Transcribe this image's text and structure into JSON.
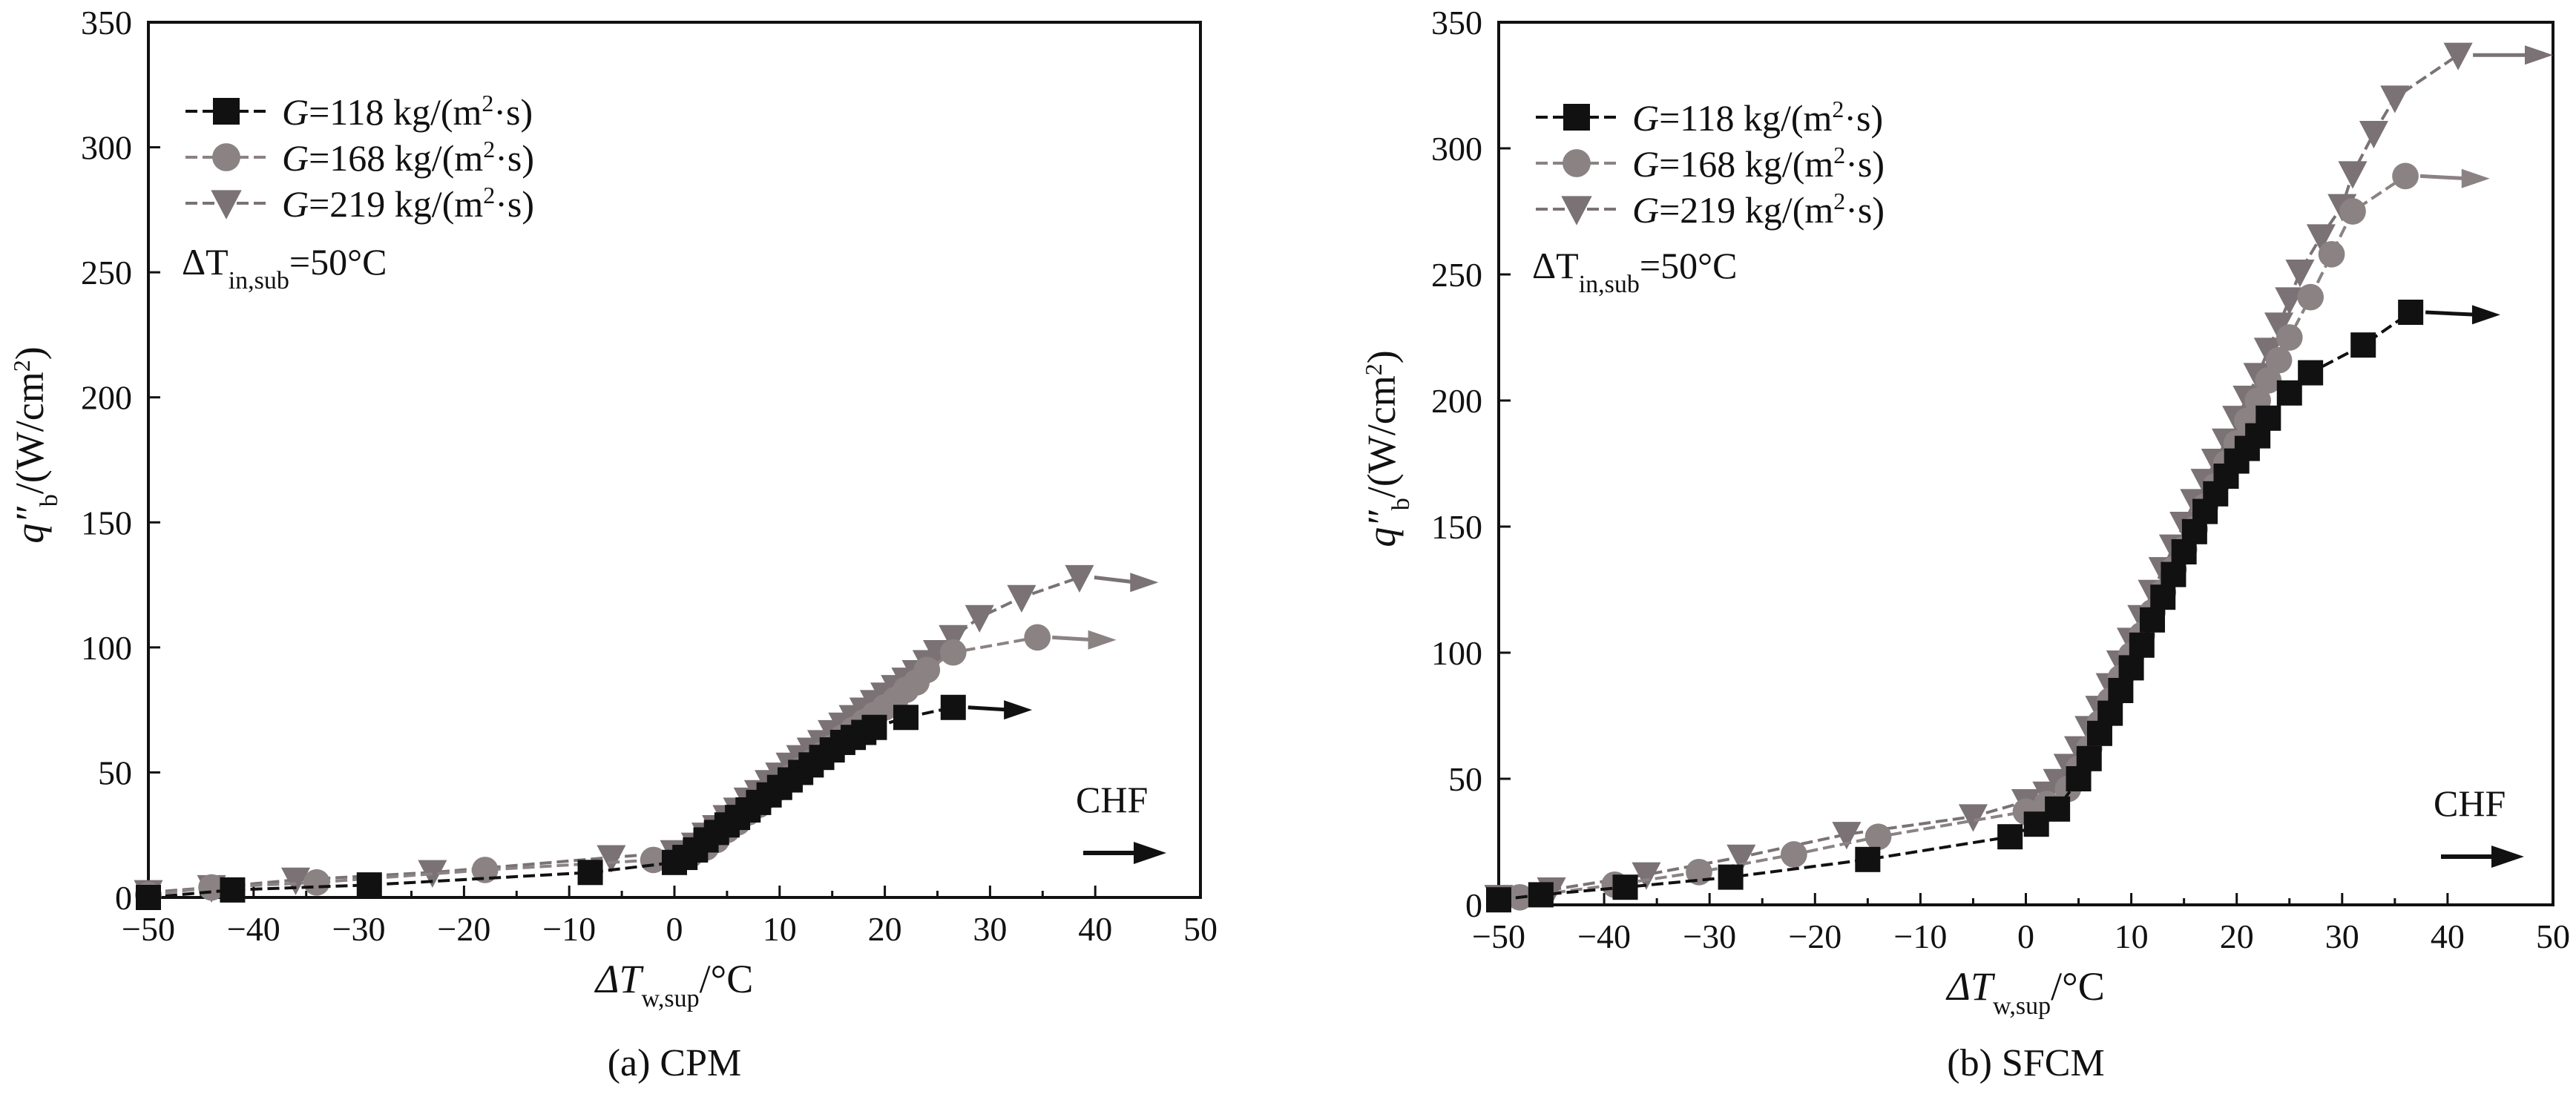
{
  "colors": {
    "black": "#111111",
    "gray": "#8a8283",
    "gray_dark": "#7a7274",
    "axis": "#111111"
  },
  "chart_data": [
    {
      "type": "line",
      "panel_caption": "(a) CPM",
      "xlabel": {
        "main": "ΔT",
        "sub": "w,sup",
        "unit": "/°C"
      },
      "ylabel": {
        "main": "q″",
        "sub": "b",
        "unit": "/(W/cm",
        "sup": "2",
        "close": ")"
      },
      "xlim": [
        -50,
        50
      ],
      "ylim": [
        0,
        350
      ],
      "xticks": [
        -50,
        -40,
        -30,
        -20,
        -10,
        0,
        10,
        20,
        30,
        40,
        50
      ],
      "yticks": [
        0,
        50,
        100,
        150,
        200,
        250,
        300,
        350
      ],
      "annotation": {
        "condition_main": "ΔT",
        "condition_sub": "in,sub",
        "condition_value": "=50°C",
        "chf_label": "CHF"
      },
      "series": [
        {
          "name_g": "G",
          "name_rest": "=118 kg/(m",
          "name_sup": "2",
          "name_end": "·s)",
          "marker": "square",
          "color": "black",
          "x": [
            -50,
            -42,
            -29,
            -8,
            0,
            1,
            2,
            3,
            4,
            5,
            6,
            7,
            8,
            9,
            10,
            11,
            12,
            13,
            14,
            15,
            16,
            17,
            18,
            19,
            22,
            26.5
          ],
          "y": [
            0,
            3,
            5,
            10,
            14,
            16,
            19,
            23,
            26,
            29,
            32,
            35,
            38,
            41,
            44,
            47,
            50,
            53,
            56,
            59,
            62,
            64,
            66,
            68,
            72,
            76
          ],
          "chf_arrow": [
            26.5,
            76,
            34,
            75
          ]
        },
        {
          "name_g": "G",
          "name_rest": "=168 kg/(m",
          "name_sup": "2",
          "name_end": "·s)",
          "marker": "circle",
          "color": "gray",
          "x": [
            -50,
            -44,
            -34,
            -18,
            -2,
            1.5,
            3,
            4,
            5,
            6,
            7,
            8,
            9,
            10,
            11,
            12,
            13,
            14,
            15,
            16,
            17,
            18,
            19,
            20,
            21,
            22,
            23,
            24,
            26.5,
            34.5
          ],
          "y": [
            1,
            4,
            6,
            11,
            15,
            17,
            20,
            23,
            27,
            30,
            34,
            37,
            41,
            44,
            48,
            51,
            54,
            57,
            60,
            64,
            67,
            70,
            73,
            76,
            79,
            83,
            86,
            91,
            98,
            104
          ],
          "chf_arrow": [
            34.5,
            104,
            42,
            103
          ]
        },
        {
          "name_g": "G",
          "name_rest": "=219 kg/(m",
          "name_sup": "2",
          "name_end": "·s)",
          "marker": "triangle",
          "color": "gray_dark",
          "x": [
            -50,
            -44,
            -36,
            -23,
            -6,
            0,
            2,
            3,
            4,
            5,
            6,
            7,
            8,
            9,
            10,
            11,
            12,
            13,
            14,
            15,
            16,
            17,
            18,
            19,
            20,
            21,
            22,
            23,
            24,
            25,
            26.5,
            29,
            33,
            38.5
          ],
          "y": [
            2,
            4,
            7,
            10,
            16,
            18,
            21,
            25,
            28,
            32,
            35,
            39,
            42,
            46,
            49,
            53,
            56,
            59,
            62,
            66,
            69,
            72,
            75,
            78,
            81,
            84,
            87,
            90,
            94,
            98,
            104,
            112,
            120,
            128
          ],
          "chf_arrow": [
            38.5,
            128,
            46,
            126
          ]
        }
      ]
    },
    {
      "type": "line",
      "panel_caption": "(b) SFCM",
      "xlabel": {
        "main": "ΔT",
        "sub": "w,sup",
        "unit": "/°C"
      },
      "ylabel": {
        "main": "q″",
        "sub": "b",
        "unit": "/(W/cm",
        "sup": "2",
        "close": ")"
      },
      "xlim": [
        -50,
        50
      ],
      "ylim": [
        0,
        350
      ],
      "xticks": [
        -50,
        -40,
        -30,
        -20,
        -10,
        0,
        10,
        20,
        30,
        40,
        50
      ],
      "yticks": [
        0,
        50,
        100,
        150,
        200,
        250,
        300,
        350
      ],
      "annotation": {
        "condition_main": "ΔT",
        "condition_sub": "in,sub",
        "condition_value": "=50°C",
        "chf_label": "CHF"
      },
      "series": [
        {
          "name_g": "G",
          "name_rest": "=118 kg/(m",
          "name_sup": "2",
          "name_end": "·s)",
          "marker": "square",
          "color": "black",
          "x": [
            -50,
            -46,
            -38,
            -28,
            -15,
            -1.5,
            1,
            3,
            5,
            6,
            7,
            8,
            9,
            10,
            11,
            12,
            13,
            14,
            15,
            16,
            17,
            18,
            19,
            20,
            21,
            22,
            23,
            25,
            27,
            32,
            36.5
          ],
          "y": [
            2,
            4,
            7,
            11,
            18,
            27,
            32,
            38,
            50,
            58,
            68,
            76,
            85,
            94,
            103,
            113,
            122,
            131,
            140,
            148,
            156,
            163,
            170,
            176,
            181,
            186,
            193,
            203,
            211,
            222,
            235
          ],
          "chf_arrow": [
            36.5,
            235,
            45,
            234
          ]
        },
        {
          "name_g": "G",
          "name_rest": "=168 kg/(m",
          "name_sup": "2",
          "name_end": "·s)",
          "marker": "circle",
          "color": "gray",
          "x": [
            -48,
            -39,
            -31,
            -22,
            -14,
            0,
            2,
            4,
            5,
            6,
            7,
            8,
            9,
            10,
            11,
            12,
            13,
            14,
            15,
            16,
            17,
            18,
            19,
            20,
            21,
            22,
            23,
            24,
            25,
            27,
            29,
            31,
            36
          ],
          "y": [
            3,
            8,
            13,
            20,
            27,
            37,
            40,
            46,
            54,
            62,
            72,
            81,
            90,
            99,
            107,
            116,
            124,
            133,
            141,
            149,
            158,
            166,
            175,
            183,
            192,
            200,
            208,
            216,
            225,
            241,
            258,
            275,
            289
          ],
          "chf_arrow": [
            36,
            289,
            44,
            288
          ]
        },
        {
          "name_g": "G",
          "name_rest": "=219 kg/(m",
          "name_sup": "2",
          "name_end": "·s)",
          "marker": "triangle",
          "color": "gray_dark",
          "x": [
            -50,
            -45,
            -36,
            -27,
            -17,
            -5,
            0,
            2,
            3,
            4,
            5,
            6,
            7,
            8,
            9,
            10,
            11,
            12,
            13,
            14,
            15,
            16,
            17,
            18,
            19,
            20,
            21,
            22,
            23,
            24,
            25,
            26,
            28,
            30,
            31,
            33,
            35,
            41
          ],
          "y": [
            3,
            6,
            12,
            19,
            28,
            35,
            41,
            44,
            49,
            55,
            62,
            70,
            78,
            87,
            96,
            105,
            114,
            124,
            133,
            142,
            151,
            160,
            168,
            176,
            184,
            193,
            201,
            210,
            220,
            230,
            240,
            251,
            265,
            277,
            290,
            306,
            320,
            337
          ],
          "chf_arrow": [
            41,
            337,
            50,
            337
          ]
        }
      ]
    }
  ]
}
